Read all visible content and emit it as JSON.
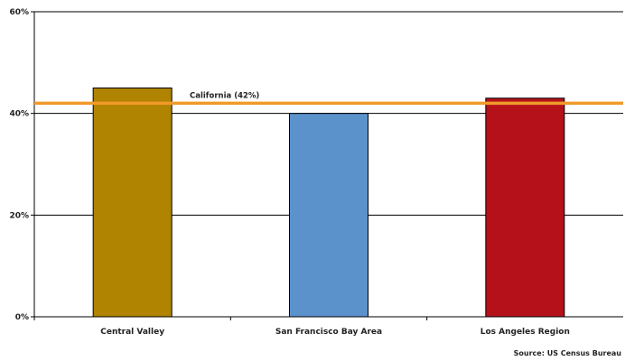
{
  "chart_data": {
    "type": "bar",
    "categories": [
      "Central Valley",
      "San Francisco Bay Area",
      "Los Angeles Region"
    ],
    "values": [
      45,
      40,
      43
    ],
    "ylim": [
      0,
      60
    ],
    "yticks": [
      0,
      20,
      40,
      60
    ],
    "ytick_labels": [
      "0%",
      "20%",
      "40%",
      "60%"
    ],
    "grid": true,
    "bar_colors": [
      "#b08400",
      "#5b92cc",
      "#b5111b"
    ],
    "reference_line": {
      "value": 42,
      "label": "California (42%)",
      "color": "#f09a2a"
    },
    "source": "Source: US Census Bureau"
  }
}
